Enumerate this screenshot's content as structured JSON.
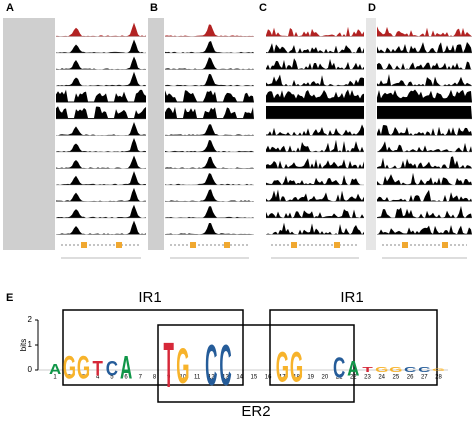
{
  "panels": [
    "A",
    "B",
    "C",
    "D",
    "E"
  ],
  "logo": {
    "boxes": [
      "IR1",
      "IR1",
      "ER2"
    ],
    "y_label": "bits",
    "ylim": [
      0,
      2
    ],
    "yticks": [
      0,
      1,
      2
    ],
    "positions": [
      1,
      2,
      3,
      4,
      5,
      6,
      7,
      8,
      9,
      10,
      11,
      12,
      13,
      14,
      15,
      16,
      17,
      18,
      19,
      20,
      21,
      22,
      23,
      24,
      25,
      26,
      27,
      28
    ],
    "letters": [
      {
        "letter": "A",
        "bits": 0.4
      },
      {
        "letter": "G",
        "bits": 0.9
      },
      {
        "letter": "G",
        "bits": 0.9
      },
      {
        "letter": "T",
        "bits": 0.6
      },
      {
        "letter": "C",
        "bits": 0.6
      },
      {
        "letter": "A",
        "bits": 0.9
      },
      null,
      null,
      {
        "letter": "T",
        "bits": 1.8
      },
      {
        "letter": "G",
        "bits": 1.4
      },
      null,
      {
        "letter": "C",
        "bits": 1.6
      },
      {
        "letter": "C",
        "bits": 1.6
      },
      null,
      null,
      null,
      {
        "letter": "G",
        "bits": 1.2
      },
      {
        "letter": "G",
        "bits": 1.2
      },
      null,
      null,
      {
        "letter": "C",
        "bits": 0.8
      },
      {
        "letter": "A",
        "bits": 0.6
      },
      {
        "letter": "T",
        "bits": 0.2
      },
      {
        "letter": "G",
        "bits": 0.2
      },
      {
        "letter": "G",
        "bits": 0.2
      },
      {
        "letter": "C",
        "bits": 0.2
      },
      {
        "letter": "C",
        "bits": 0.2
      },
      {
        "letter": "G",
        "bits": 0.1
      }
    ]
  }
}
